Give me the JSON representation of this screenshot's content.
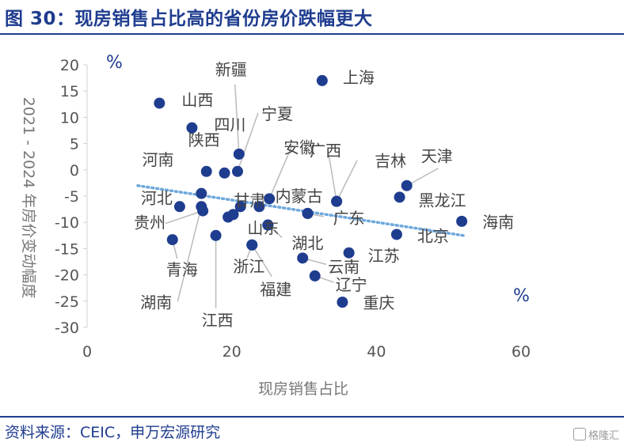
{
  "header": {
    "title": "图 30：现房销售占比高的省份房价跌幅更大"
  },
  "footer": {
    "source": "资料来源：CEIC，申万宏源研究",
    "watermark": "格隆汇"
  },
  "chart_data": {
    "type": "scatter",
    "title": "图 30：现房销售占比高的省份房价跌幅更大",
    "xlabel": "现房销售占比",
    "ylabel": "2021 - 2024 年房价变动幅度",
    "x_unit": "%",
    "y_unit": "%",
    "xlim": [
      0,
      60
    ],
    "ylim": [
      -30,
      20
    ],
    "x_ticks": [
      "0",
      "20",
      "40",
      "60"
    ],
    "y_ticks": [
      "20",
      "15",
      "10",
      "5",
      "0",
      "-5",
      "-10",
      "-15",
      "-20",
      "-25",
      "-30"
    ],
    "grid": false,
    "trendline": {
      "style": "dotted",
      "from": [
        7,
        -3
      ],
      "to": [
        52,
        -12.5
      ]
    },
    "colors": {
      "point": "#1f3d8f",
      "trend": "#6fa8dc",
      "leader": "#bbbbbb"
    },
    "points": [
      {
        "label": "上海",
        "x": 32.5,
        "y": 17
      },
      {
        "label": "山西",
        "x": 10,
        "y": 12.7
      },
      {
        "label": "四川",
        "x": 14.5,
        "y": 8
      },
      {
        "label": "新疆",
        "x": 21,
        "y": 3
      },
      {
        "label": "宁夏",
        "x": 20.8,
        "y": -0.3
      },
      {
        "label": "陕西",
        "x": 16.5,
        "y": -0.3
      },
      {
        "label": "河南",
        "x": 19,
        "y": -0.6
      },
      {
        "label": "安徽",
        "x": 25.2,
        "y": -5.5
      },
      {
        "label": "广西",
        "x": 34.5,
        "y": -6
      },
      {
        "label": "吉林",
        "x": 34.5,
        "y": -6
      },
      {
        "label": "天津",
        "x": 44.2,
        "y": -3
      },
      {
        "label": "黑龙江",
        "x": 43.2,
        "y": -5.2
      },
      {
        "label": "海南",
        "x": 51.8,
        "y": -9.8
      },
      {
        "label": "北京",
        "x": 42.8,
        "y": -12.3
      },
      {
        "label": "江苏",
        "x": 36.2,
        "y": -15.8
      },
      {
        "label": "云南",
        "x": 29.8,
        "y": -16.8
      },
      {
        "label": "辽宁",
        "x": 31.5,
        "y": -20.2
      },
      {
        "label": "重庆",
        "x": 35.3,
        "y": -25.2
      },
      {
        "label": "甘肃",
        "x": 23.8,
        "y": -7
      },
      {
        "label": "内蒙古",
        "x": 30.5,
        "y": -8.3
      },
      {
        "label": "广东",
        "x": 30.5,
        "y": -8.3
      },
      {
        "label": "山东",
        "x": 25,
        "y": -10.5
      },
      {
        "label": "湖北",
        "x": 25,
        "y": -10.5
      },
      {
        "label": "浙江",
        "x": 22.8,
        "y": -14.3
      },
      {
        "label": "福建",
        "x": 22.8,
        "y": -14.3
      },
      {
        "label": "河北",
        "x": 12.8,
        "y": -7
      },
      {
        "label": "贵州",
        "x": 16,
        "y": -7.8
      },
      {
        "label": "青海",
        "x": 11.8,
        "y": -13.3
      },
      {
        "label": "湖南",
        "x": 15.8,
        "y": -7
      },
      {
        "label": "江西",
        "x": 17.8,
        "y": -12.5
      },
      {
        "label": "",
        "x": 15.8,
        "y": -4.5
      },
      {
        "label": "",
        "x": 19.5,
        "y": -9
      },
      {
        "label": "",
        "x": 20.2,
        "y": -8.5
      },
      {
        "label": "",
        "x": 21.2,
        "y": -7
      }
    ]
  }
}
